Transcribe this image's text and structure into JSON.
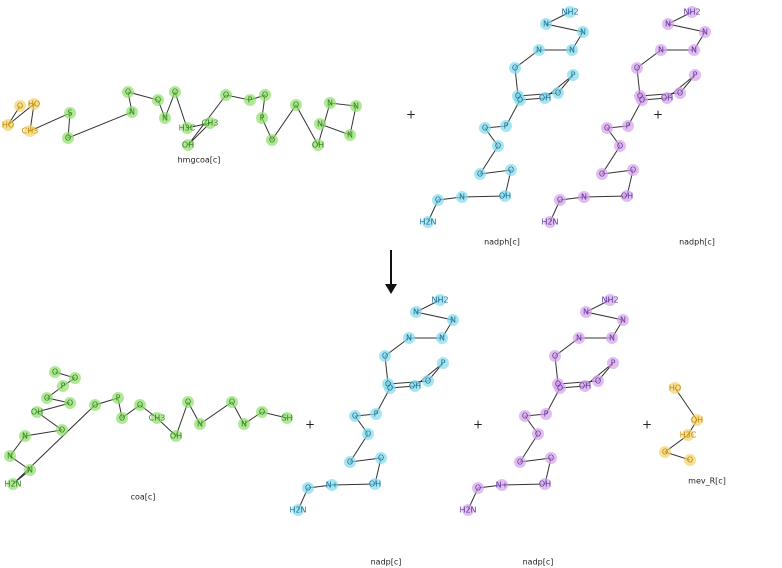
{
  "reactants": [
    {
      "name": "hmgcoa[c]",
      "atoms": [
        "O",
        "HO",
        "HO",
        "CH3",
        "S",
        "O",
        "N",
        "O",
        "O",
        "N",
        "O",
        "H3C",
        "CH3",
        "OH",
        "O",
        "P",
        "O",
        "P",
        "O",
        "O",
        "OH",
        "N",
        "N",
        "N",
        "N"
      ]
    },
    {
      "name": "nadph[c]",
      "atoms": [
        "NH2",
        "N",
        "N",
        "N",
        "N",
        "O",
        "O",
        "O",
        "P",
        "OH",
        "O",
        "P",
        "O",
        "O",
        "O",
        "O",
        "OH",
        "N",
        "O",
        "H2N"
      ]
    },
    {
      "name": "nadph[c]",
      "atoms": [
        "NH2",
        "N",
        "N",
        "N",
        "N",
        "O",
        "O",
        "O",
        "P",
        "OH",
        "O",
        "P",
        "O",
        "O",
        "O",
        "O",
        "OH",
        "N",
        "O",
        "H2N"
      ]
    }
  ],
  "products": [
    {
      "name": "coa[c]",
      "atoms": [
        "O",
        "O",
        "P",
        "O",
        "O",
        "OH",
        "O",
        "N",
        "N",
        "N",
        "H2N",
        "O",
        "P",
        "O",
        "O",
        "CH3",
        "OH",
        "O",
        "N",
        "O",
        "N",
        "O",
        "SH"
      ]
    },
    {
      "name": "nadp[c]",
      "atoms": [
        "NH2",
        "N",
        "N",
        "N",
        "N",
        "O",
        "O",
        "O",
        "P",
        "OH",
        "O",
        "P",
        "O",
        "O",
        "O",
        "O",
        "OH",
        "N+",
        "O",
        "H2N"
      ]
    },
    {
      "name": "nadp[c]",
      "atoms": [
        "NH2",
        "N",
        "N",
        "N",
        "N",
        "O",
        "O",
        "O",
        "P",
        "OH",
        "O",
        "P",
        "O",
        "O",
        "O",
        "O",
        "OH",
        "N+",
        "O",
        "H2N"
      ]
    },
    {
      "name": "mev_R[c]",
      "atoms": [
        "HO",
        "OH",
        "H3C",
        "O",
        "O"
      ]
    }
  ],
  "operators": [
    "+",
    "+",
    "+",
    "+",
    "+"
  ]
}
